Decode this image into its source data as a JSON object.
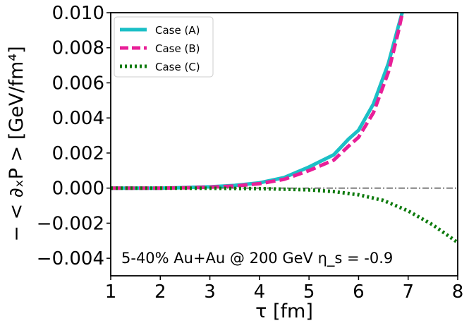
{
  "chart_data": {
    "type": "line",
    "title": "",
    "xlabel": "τ [fm]",
    "ylabel": "− < ∂ₓP >  [GeV/fm⁴]",
    "xlim": [
      1,
      8
    ],
    "ylim": [
      -0.005,
      0.01
    ],
    "xticks": [
      "1",
      "2",
      "3",
      "4",
      "5",
      "6",
      "7",
      "8"
    ],
    "yticks": [
      "0.010",
      "0.008",
      "0.006",
      "0.004",
      "0.002",
      "0.000",
      "−0.002",
      "−0.004"
    ],
    "ytick_values": [
      0.01,
      0.008,
      0.006,
      0.004,
      0.002,
      0.0,
      -0.002,
      -0.004
    ],
    "legend_position": "top-left",
    "annotation": "5-40% Au+Au @ 200 GeV η_s = -0.9",
    "reference_line": {
      "y": 0.0,
      "style": "dash-dot",
      "color": "#000000"
    },
    "series": [
      {
        "name": "Case (A)",
        "color": "#1bbfc6",
        "style": "solid",
        "x": [
          1.0,
          1.5,
          2.0,
          2.5,
          3.0,
          3.5,
          4.0,
          4.5,
          5.0,
          5.5,
          5.8,
          6.0,
          6.3,
          6.6,
          6.8,
          6.9
        ],
        "y": [
          0.0,
          0.0,
          0.0,
          3e-05,
          7e-05,
          0.00015,
          0.0003,
          0.0006,
          0.0012,
          0.0019,
          0.0028,
          0.0033,
          0.0048,
          0.0071,
          0.0092,
          0.0102
        ]
      },
      {
        "name": "Case (B)",
        "color": "#e81f98",
        "style": "dashed",
        "x": [
          1.0,
          1.5,
          2.0,
          2.5,
          3.0,
          3.5,
          4.0,
          4.5,
          5.0,
          5.5,
          5.8,
          6.0,
          6.3,
          6.6,
          6.8,
          6.9
        ],
        "y": [
          0.0,
          0.0,
          0.0,
          2e-05,
          5e-05,
          0.00012,
          0.00025,
          0.0005,
          0.001,
          0.0016,
          0.0024,
          0.0029,
          0.0043,
          0.0066,
          0.0089,
          0.0102
        ]
      },
      {
        "name": "Case (C)",
        "color": "#0c7a0c",
        "style": "dotted",
        "x": [
          1.0,
          2.0,
          3.0,
          4.0,
          4.5,
          5.0,
          5.5,
          6.0,
          6.5,
          7.0,
          7.5,
          8.0
        ],
        "y": [
          0.0,
          0.0,
          -1e-05,
          -3e-05,
          -6e-05,
          -0.0001,
          -0.0002,
          -0.00038,
          -0.0007,
          -0.0013,
          -0.0021,
          -0.0031
        ]
      }
    ]
  }
}
